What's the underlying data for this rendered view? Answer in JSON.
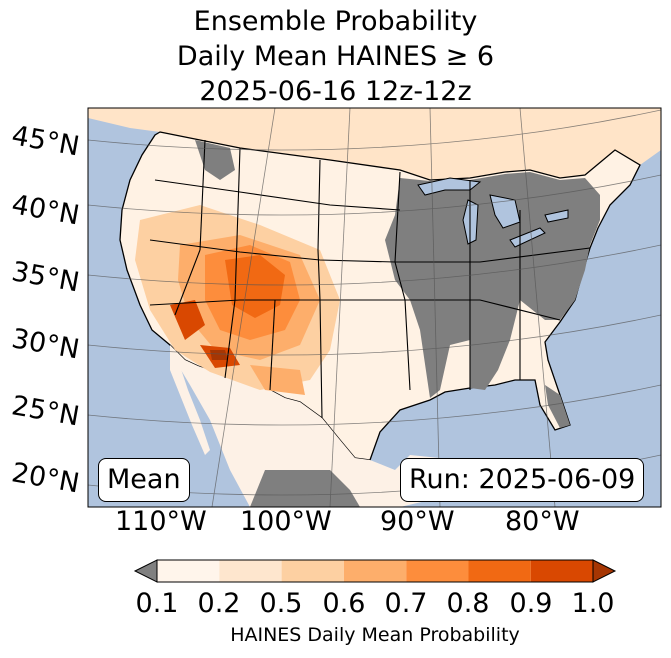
{
  "title": {
    "line1": "Ensemble Probability",
    "line2": "Daily Mean HAINES ≥ 6",
    "line3": "2025-06-16 12z-12z"
  },
  "map": {
    "lat_labels": [
      "45°N",
      "40°N",
      "35°N",
      "30°N",
      "25°N",
      "20°N"
    ],
    "lon_labels": [
      "110°W",
      "100°W",
      "90°W",
      "80°W"
    ],
    "stat_label": "Mean",
    "run_label": "Run: 2025-06-09",
    "colors": {
      "ocean": "#b0c4de",
      "land_low": "#ffffff",
      "no_data": "#808080"
    }
  },
  "colorbar": {
    "ticks": [
      "0.1",
      "0.2",
      "0.5",
      "0.6",
      "0.7",
      "0.8",
      "0.9",
      "1.0"
    ],
    "label": "HAINES Daily Mean Probability",
    "under_color": "#808080",
    "over_color": "#a63603",
    "colors": [
      "#fff5eb",
      "#fee6ce",
      "#fdd0a2",
      "#fdae6b",
      "#fd8d3c",
      "#f16913",
      "#d94801"
    ]
  }
}
